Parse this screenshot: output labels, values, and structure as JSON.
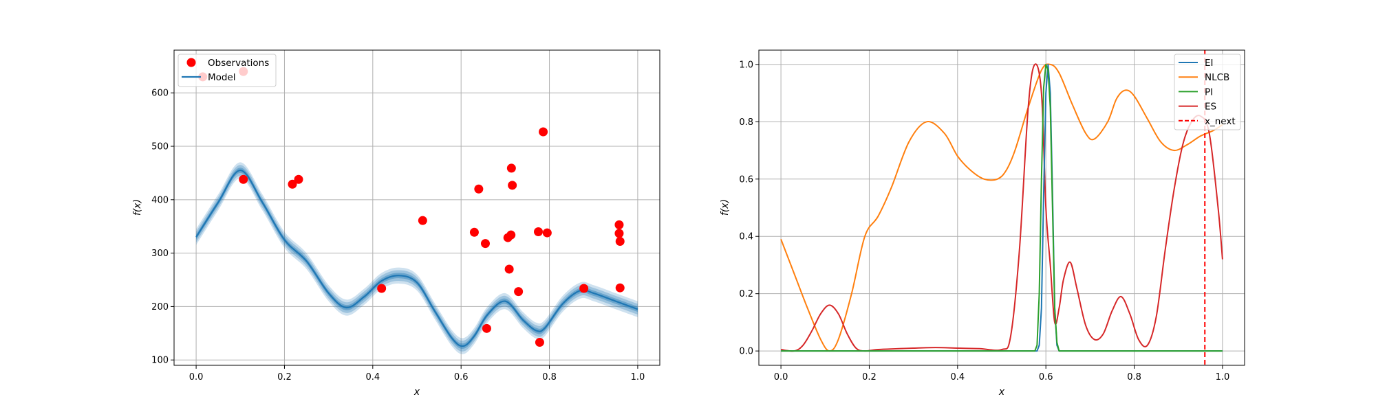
{
  "colors": {
    "observations": "#ff0000",
    "model": "#1f77b4",
    "EI": "#1f77b4",
    "NLCB": "#ff7f0e",
    "PI": "#2ca02c",
    "ES": "#d62728",
    "x_next": "#ff0000",
    "grid": "#b0b0b0"
  },
  "chart_data": [
    {
      "type": "scatter",
      "title": "",
      "xlabel": "x",
      "ylabel": "f(x)",
      "xlim": [
        -0.05,
        1.05
      ],
      "ylim": [
        90,
        680
      ],
      "grid": true,
      "legend_placement": "upper-left",
      "xticks": [
        0.0,
        0.2,
        0.4,
        0.6,
        0.8,
        1.0
      ],
      "xtick_labels": [
        "0.0",
        "0.2",
        "0.4",
        "0.6",
        "0.8",
        "1.0"
      ],
      "yticks": [
        100,
        200,
        300,
        400,
        500,
        600
      ],
      "ytick_labels": [
        "100",
        "200",
        "300",
        "400",
        "500",
        "600"
      ],
      "legend": [
        "Observations",
        "Model"
      ],
      "observations": {
        "name": "Observations",
        "points": [
          [
            0.015,
            630
          ],
          [
            0.107,
            640
          ],
          [
            0.107,
            438
          ],
          [
            0.218,
            429
          ],
          [
            0.232,
            438
          ],
          [
            0.42,
            234
          ],
          [
            0.513,
            361
          ],
          [
            0.63,
            339
          ],
          [
            0.64,
            420
          ],
          [
            0.655,
            318
          ],
          [
            0.658,
            159
          ],
          [
            0.706,
            329
          ],
          [
            0.709,
            270
          ],
          [
            0.713,
            334
          ],
          [
            0.714,
            459
          ],
          [
            0.716,
            427
          ],
          [
            0.73,
            228
          ],
          [
            0.775,
            340
          ],
          [
            0.778,
            133
          ],
          [
            0.786,
            527
          ],
          [
            0.795,
            338
          ],
          [
            0.878,
            234
          ],
          [
            0.958,
            353
          ],
          [
            0.958,
            337
          ],
          [
            0.96,
            322
          ],
          [
            0.96,
            235
          ]
        ]
      },
      "model": {
        "name": "Model",
        "x": [
          0.0,
          0.05,
          0.1,
          0.15,
          0.2,
          0.25,
          0.3,
          0.34,
          0.38,
          0.42,
          0.46,
          0.5,
          0.54,
          0.58,
          0.605,
          0.63,
          0.66,
          0.7,
          0.74,
          0.77,
          0.79,
          0.83,
          0.87,
          0.9,
          0.95,
          1.0
        ],
        "y": [
          330,
          395,
          455,
          395,
          325,
          285,
          225,
          198,
          218,
          248,
          258,
          245,
          192,
          140,
          126,
          145,
          185,
          210,
          175,
          155,
          160,
          205,
          230,
          225,
          210,
          195
        ],
        "bands": [
          5,
          10,
          15
        ]
      }
    },
    {
      "type": "line",
      "title": "",
      "xlabel": "x",
      "ylabel": "f(x)",
      "xlim": [
        -0.05,
        1.05
      ],
      "ylim": [
        -0.05,
        1.05
      ],
      "grid": true,
      "legend_placement": "upper-right",
      "xticks": [
        0.0,
        0.2,
        0.4,
        0.6,
        0.8,
        1.0
      ],
      "xtick_labels": [
        "0.0",
        "0.2",
        "0.4",
        "0.6",
        "0.8",
        "1.0"
      ],
      "yticks": [
        0.0,
        0.2,
        0.4,
        0.6,
        0.8,
        1.0
      ],
      "ytick_labels": [
        "0.0",
        "0.2",
        "0.4",
        "0.6",
        "0.8",
        "1.0"
      ],
      "legend": [
        "EI",
        "NLCB",
        "PI",
        "ES",
        "x_next"
      ],
      "series": [
        {
          "name": "EI",
          "x": [
            0.0,
            0.58,
            0.585,
            0.59,
            0.595,
            0.6,
            0.605,
            0.61,
            0.615,
            0.62,
            0.625,
            0.63,
            1.0
          ],
          "y": [
            0.0,
            0.0,
            0.02,
            0.15,
            0.55,
            0.9,
            1.0,
            0.9,
            0.55,
            0.15,
            0.02,
            0.0,
            0.0
          ]
        },
        {
          "name": "NLCB",
          "x": [
            0.0,
            0.03,
            0.06,
            0.09,
            0.11,
            0.13,
            0.16,
            0.19,
            0.22,
            0.25,
            0.29,
            0.33,
            0.37,
            0.4,
            0.43,
            0.46,
            0.49,
            0.51,
            0.53,
            0.56,
            0.59,
            0.61,
            0.63,
            0.66,
            0.69,
            0.71,
            0.74,
            0.76,
            0.78,
            0.8,
            0.83,
            0.86,
            0.89,
            0.92,
            0.95,
            0.98,
            1.0
          ],
          "y": [
            0.39,
            0.27,
            0.15,
            0.04,
            0.0,
            0.04,
            0.2,
            0.4,
            0.47,
            0.57,
            0.73,
            0.8,
            0.76,
            0.68,
            0.63,
            0.6,
            0.6,
            0.63,
            0.7,
            0.85,
            0.98,
            1.0,
            0.97,
            0.86,
            0.76,
            0.74,
            0.8,
            0.88,
            0.91,
            0.89,
            0.81,
            0.73,
            0.7,
            0.72,
            0.75,
            0.77,
            0.79
          ]
        },
        {
          "name": "PI",
          "x": [
            0.0,
            0.575,
            0.58,
            0.585,
            0.59,
            0.595,
            0.6,
            0.605,
            0.61,
            0.615,
            0.62,
            0.625,
            0.63,
            0.635,
            1.0
          ],
          "y": [
            0.0,
            0.0,
            0.02,
            0.2,
            0.6,
            0.92,
            1.0,
            0.98,
            0.85,
            0.5,
            0.15,
            0.03,
            0.0,
            0.0,
            0.0
          ]
        },
        {
          "name": "ES",
          "x": [
            0.0,
            0.03,
            0.05,
            0.07,
            0.09,
            0.11,
            0.13,
            0.15,
            0.17,
            0.19,
            0.22,
            0.3,
            0.35,
            0.4,
            0.45,
            0.5,
            0.52,
            0.54,
            0.56,
            0.575,
            0.59,
            0.6,
            0.61,
            0.62,
            0.63,
            0.64,
            0.655,
            0.67,
            0.69,
            0.71,
            0.73,
            0.75,
            0.77,
            0.79,
            0.81,
            0.83,
            0.85,
            0.87,
            0.89,
            0.91,
            0.93,
            0.95,
            0.97,
            0.99,
            1.0
          ],
          "y": [
            0.005,
            0.0,
            0.02,
            0.07,
            0.13,
            0.16,
            0.13,
            0.06,
            0.01,
            0.0,
            0.005,
            0.01,
            0.012,
            0.01,
            0.008,
            0.005,
            0.05,
            0.35,
            0.85,
            1.0,
            0.9,
            0.5,
            0.3,
            0.1,
            0.15,
            0.25,
            0.31,
            0.22,
            0.09,
            0.04,
            0.06,
            0.14,
            0.19,
            0.13,
            0.04,
            0.02,
            0.12,
            0.35,
            0.56,
            0.72,
            0.8,
            0.82,
            0.76,
            0.5,
            0.32
          ]
        }
      ],
      "x_next": {
        "name": "x_next",
        "value": 0.96
      }
    }
  ]
}
